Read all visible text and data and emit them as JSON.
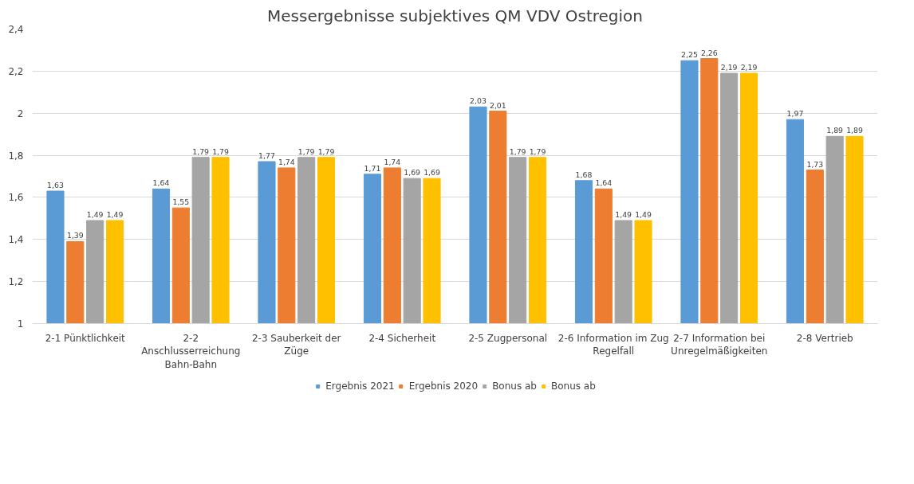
{
  "chart_data": {
    "type": "bar",
    "title": "Messergebnisse subjektives QM VDV Ostregion",
    "categories": [
      "2-1 Pünktlichkeit",
      "2-2 Anschlusserreichung Bahn-Bahn",
      "2-3 Sauberkeit der Züge",
      "2-4 Sicherheit",
      "2-5 Zugpersonal",
      "2-6 Information im Zug Regelfall",
      "2-7 Information bei Unregelmäßigkeiten",
      "2-8 Vertrieb"
    ],
    "series": [
      {
        "name": "Ergebnis 2021",
        "color": "#5b9bd5",
        "values": [
          1.63,
          1.64,
          1.77,
          1.71,
          2.03,
          1.68,
          2.25,
          1.97
        ],
        "value_labels": [
          "1,63",
          "1,64",
          "1,77",
          "1,71",
          "2,03",
          "1,68",
          "2,25",
          "1,97"
        ]
      },
      {
        "name": "Ergebnis 2020",
        "color": "#ed7d31",
        "values": [
          1.39,
          1.55,
          1.74,
          1.74,
          2.01,
          1.64,
          2.26,
          1.73
        ],
        "value_labels": [
          "1,39",
          "1,55",
          "1,74",
          "1,74",
          "2,01",
          "1,64",
          "2,26",
          "1,73"
        ]
      },
      {
        "name": "Bonus ab",
        "color": "#a5a5a5",
        "values": [
          1.49,
          1.79,
          1.79,
          1.69,
          1.79,
          1.49,
          2.19,
          1.89
        ],
        "value_labels": [
          "1,49",
          "1,79",
          "1,79",
          "1,69",
          "1,79",
          "1,49",
          "2,19",
          "1,89"
        ]
      },
      {
        "name": "Bonus ab",
        "color": "#ffc000",
        "values": [
          1.49,
          1.79,
          1.79,
          1.69,
          1.79,
          1.49,
          2.19,
          1.89
        ],
        "value_labels": [
          "1,49",
          "1,79",
          "1,79",
          "1,69",
          "1,79",
          "1,49",
          "2,19",
          "1,89"
        ]
      }
    ],
    "ylim": [
      1,
      2.4
    ],
    "yticks": [
      1,
      {
        "value": 1.2,
        "label": "1,2"
      },
      {
        "value": 1.4,
        "label": "1,4"
      },
      {
        "value": 1.6,
        "label": "1,6"
      },
      {
        "value": 1.8,
        "label": "1,8"
      },
      2,
      {
        "value": 2.2,
        "label": "2,2"
      },
      {
        "value": 2.4,
        "label": "2,4"
      }
    ],
    "grid": "y",
    "legend": "bottom"
  }
}
